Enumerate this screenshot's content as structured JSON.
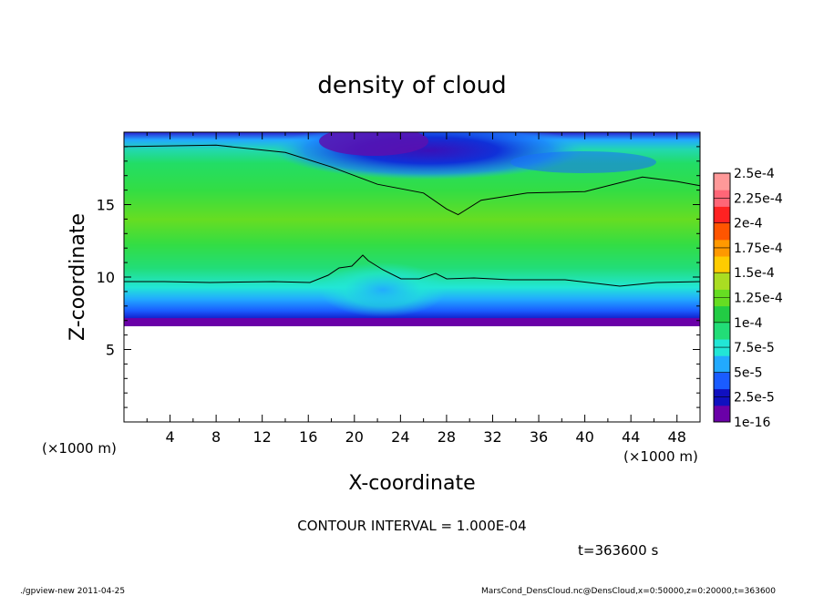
{
  "chart_data": {
    "type": "heatmap",
    "title": "density of cloud",
    "xlabel": "X-coordinate",
    "ylabel": "Z-coordinate",
    "x_unit_label_left": "(×1000 m)",
    "x_unit_label_right": "(×1000 m)",
    "xlim": [
      0,
      50
    ],
    "ylim": [
      0,
      20
    ],
    "x_ticks": [
      4,
      8,
      12,
      16,
      20,
      24,
      28,
      32,
      36,
      40,
      44,
      48
    ],
    "y_ticks": [
      5,
      10,
      15
    ],
    "contour_interval_text": "CONTOUR INTERVAL = 1.000E-04",
    "time_text": "t=363600 s",
    "footer_left": "./gpview-new   2011-04-25",
    "footer_right": "MarsCond_DensCloud.nc@DensCloud,x=0:50000,z=0:20000,t=363600",
    "colorbar": {
      "labels": [
        "1e-16",
        "2.5e-5",
        "5e-5",
        "7.5e-5",
        "1e-4",
        "1.25e-4",
        "1.5e-4",
        "1.75e-4",
        "2e-4",
        "2.25e-4",
        "2.5e-4"
      ],
      "colors": [
        "#6a00a8",
        "#1010c0",
        "#1a5cff",
        "#22aaff",
        "#22e6d6",
        "#22dd77",
        "#22cc44",
        "#66dd22",
        "#aadd22",
        "#ffcc00",
        "#ff9900",
        "#ff5500",
        "#ff2222",
        "#ff6677",
        "#ff9999"
      ]
    },
    "cloud_base_z": 6.6,
    "contour_1e-4": [
      {
        "x": 0,
        "z": 19.0
      },
      {
        "x": 8,
        "z": 19.1
      },
      {
        "x": 14,
        "z": 18.6
      },
      {
        "x": 18,
        "z": 17.6
      },
      {
        "x": 22,
        "z": 16.4
      },
      {
        "x": 26,
        "z": 15.8
      },
      {
        "x": 28,
        "z": 14.7
      },
      {
        "x": 29,
        "z": 14.3
      },
      {
        "x": 31,
        "z": 15.3
      },
      {
        "x": 35,
        "z": 15.8
      },
      {
        "x": 40,
        "z": 15.9
      },
      {
        "x": 45,
        "z": 16.9
      },
      {
        "x": 48,
        "z": 16.6
      },
      {
        "x": 50,
        "z": 16.3
      }
    ]
  }
}
